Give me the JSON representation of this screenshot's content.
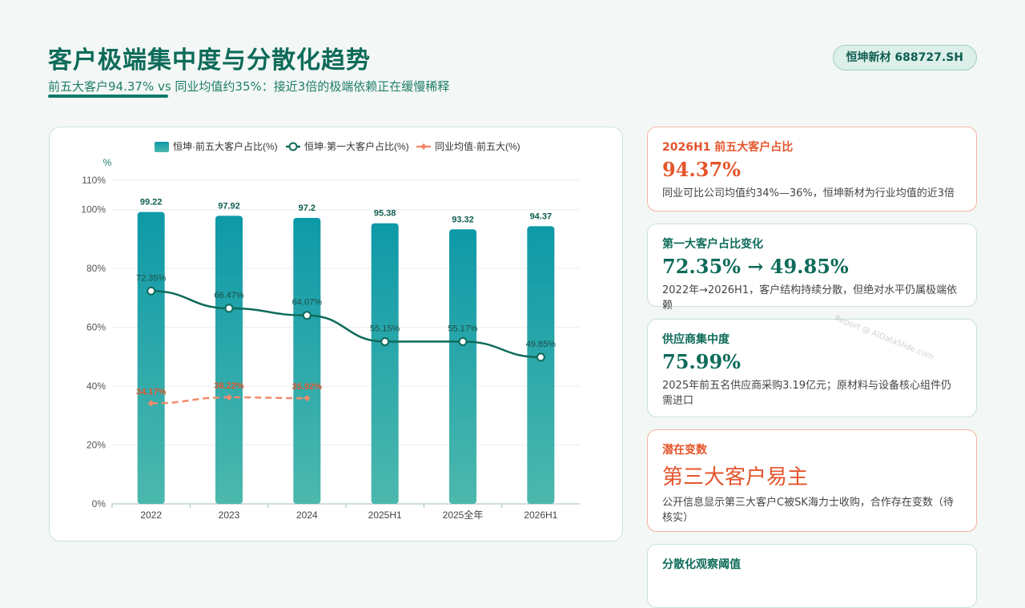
{
  "header": {
    "title": "客户极端集中度与分散化趋势",
    "subtitle": "前五大客户94.37% vs 同业均值约35%：接近3倍的极端依赖正在缓慢稀释",
    "badge": "恒坤新材 688727.SH"
  },
  "chart_data": {
    "type": "bar",
    "categories": [
      "2022",
      "2023",
      "2024",
      "2025H1",
      "2025全年",
      "2026H1"
    ],
    "ylabel": "%",
    "ylim": [
      0,
      110
    ],
    "yticks": [
      "0%",
      "20%",
      "40%",
      "60%",
      "80%",
      "100%",
      "110%"
    ],
    "grid": true,
    "legend_position": "top-center",
    "series": [
      {
        "name": "恒坤·前五大客户占比(%)",
        "type": "bar",
        "values": [
          99.22,
          97.92,
          97.2,
          95.38,
          93.32,
          94.37
        ],
        "labels": [
          "99.22",
          "97.92",
          "97.2",
          "95.38",
          "93.32",
          "94.37"
        ],
        "color": "#0e9aa7"
      },
      {
        "name": "恒坤·第一大客户占比(%)",
        "type": "line",
        "values": [
          72.35,
          66.47,
          64.07,
          55.15,
          55.17,
          49.85
        ],
        "labels": [
          "72.35%",
          "66.47%",
          "64.07%",
          "55.15%",
          "55.17%",
          "49.85%"
        ],
        "color": "#0e6b5a"
      },
      {
        "name": "同业均值·前五大(%)",
        "type": "line",
        "dashed": true,
        "values": [
          34.17,
          36.22,
          35.92,
          null,
          null,
          null
        ],
        "labels": [
          "34.17%",
          "36.22%",
          "35.92%",
          "",
          "",
          ""
        ],
        "color": "#f28a6b"
      }
    ]
  },
  "cards": [
    {
      "title": "2026H1 前五大客户占比",
      "value": "94.37%",
      "desc": "同业可比公司均值约34%—36%，恒坤新材为行业均值的近3倍",
      "warn": true
    },
    {
      "title": "第一大客户占比变化",
      "value": "72.35% → 49.85%",
      "desc": "2022年→2026H1，客户结构持续分散，但绝对水平仍属极端依赖",
      "warn": false
    },
    {
      "title": "供应商集中度",
      "value": "75.99%",
      "desc": "2025年前五名供应商采购3.19亿元；原材料与设备核心组件仍需进口",
      "warn": false
    },
    {
      "title": "潜在变数",
      "value": "第三大客户易主",
      "desc": "公开信息显示第三大客户C被SK海力士收购，合作存在变数（待核实）",
      "warn": true
    },
    {
      "title": "分散化观察阈值",
      "value": "",
      "desc": "",
      "warn": false
    }
  ],
  "watermark": "Report @ AiDataSlide.com",
  "colors": {
    "accent": "#0e6b5a",
    "bar": "#0e9aa7",
    "peer": "#f28a6b",
    "warn": "#e4552c"
  }
}
